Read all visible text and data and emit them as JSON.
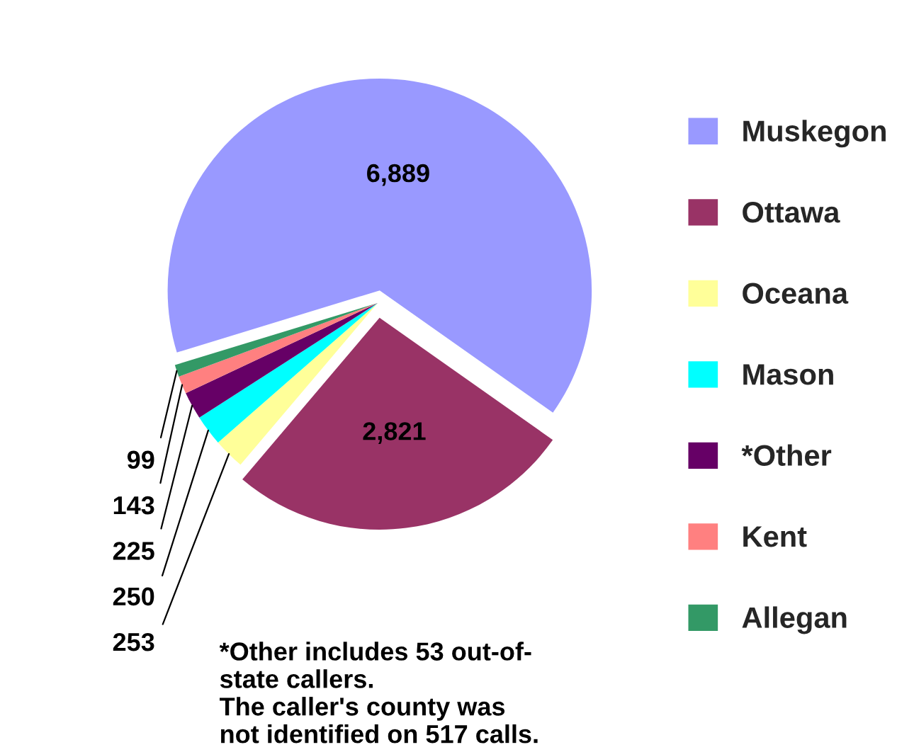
{
  "chart_data": {
    "type": "pie",
    "categories": [
      "Muskegon",
      "Ottawa",
      "Oceana",
      "Mason",
      "*Other",
      "Kent",
      "Allegan"
    ],
    "values": [
      6889,
      2821,
      253,
      250,
      225,
      143,
      99
    ],
    "value_labels": [
      "6,889",
      "2,821",
      "253",
      "250",
      "225",
      "143",
      "99"
    ],
    "colors": [
      "#9999ff",
      "#993366",
      "#ffff99",
      "#00ffff",
      "#660066",
      "#ff8080",
      "#339966"
    ],
    "legend": "right",
    "annotations": [
      "*Other includes 53 out-of-\nstate callers.\nThe caller's county was\nnot identified on 517 calls."
    ]
  }
}
